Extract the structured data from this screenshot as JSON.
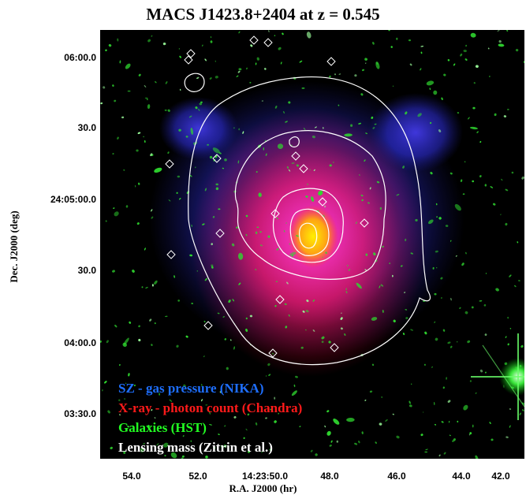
{
  "title": "MACS J1423.8+2404 at z = 0.545",
  "axes": {
    "xlabel": "R.A. J2000 (hr)",
    "ylabel": "Dec. J2000 (deg)",
    "yticks": [
      "06:00.0",
      "30.0",
      "24:05:00.0",
      "30.0",
      "04:00.0",
      "03:30.0"
    ],
    "xticks": [
      "54.0",
      "52.0",
      "14:23:50.0",
      "48.0",
      "46.0",
      "44.0",
      "42.0"
    ]
  },
  "legend": [
    {
      "text": "SZ - gas pressure (NIKA)",
      "color": "#1e6fff"
    },
    {
      "text": "X-ray - photon count (Chandra)",
      "color": "#ff1a1a"
    },
    {
      "text": "Galaxies (HST)",
      "color": "#22ff22"
    },
    {
      "text": "Lensing mass (Zitrin et al.)",
      "color": "#ffffff"
    }
  ],
  "image": {
    "background": "#000000",
    "sz_color": "#3a44ff",
    "xray_color": "#ff1230",
    "core_color": "#ffe000",
    "galaxy_color": "#2fe82f",
    "contour_color": "#ffffff"
  }
}
